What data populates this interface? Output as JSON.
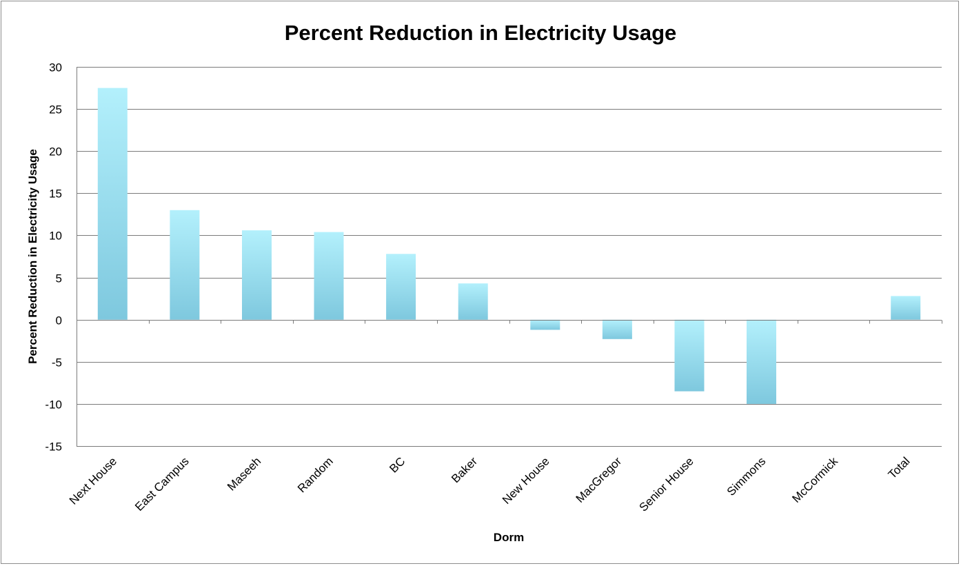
{
  "chart_data": {
    "type": "bar",
    "title": "Percent Reduction in Electricity Usage",
    "xlabel": "Dorm",
    "ylabel": "Percent Reduction in Electricity Usage",
    "categories": [
      "Next House",
      "East Campus",
      "Maseeh",
      "Random",
      "BC",
      "Baker",
      "New House",
      "MacGregor",
      "Senior House",
      "Simmons",
      "McCormick",
      "Total"
    ],
    "values": [
      27.5,
      13.0,
      10.6,
      10.4,
      7.8,
      4.3,
      -1.2,
      -2.3,
      -8.5,
      -10.0,
      0,
      2.8
    ],
    "ylim": [
      -15,
      30
    ],
    "yticks": [
      30,
      25,
      20,
      15,
      10,
      5,
      0,
      -5,
      -10,
      -15
    ],
    "grid": true,
    "legend": "none",
    "colors": {
      "bar_top": "#b3f0fc",
      "bar_bottom": "#7ec8de",
      "grid": "#7a7a7a"
    }
  }
}
